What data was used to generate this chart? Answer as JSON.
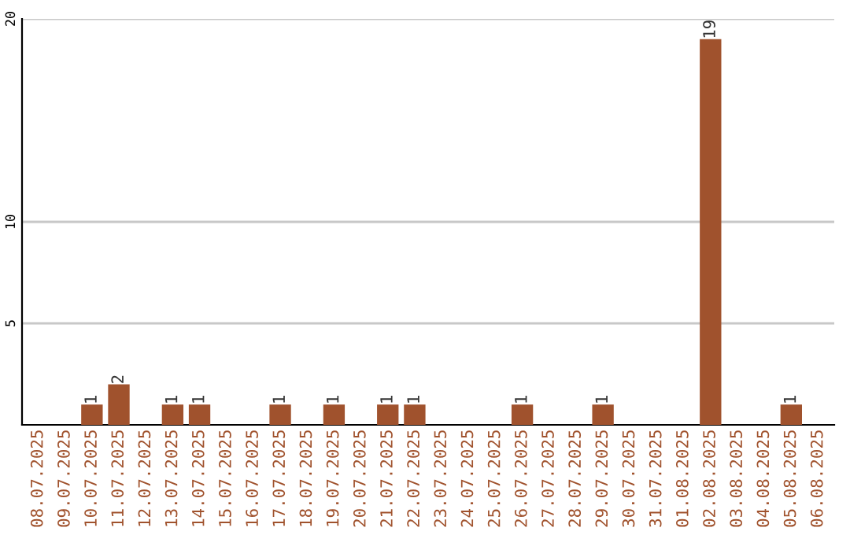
{
  "chart_data": {
    "type": "bar",
    "categories": [
      "08.07.2025",
      "09.07.2025",
      "10.07.2025",
      "11.07.2025",
      "12.07.2025",
      "13.07.2025",
      "14.07.2025",
      "15.07.2025",
      "16.07.2025",
      "17.07.2025",
      "18.07.2025",
      "19.07.2025",
      "20.07.2025",
      "21.07.2025",
      "22.07.2025",
      "23.07.2025",
      "24.07.2025",
      "25.07.2025",
      "26.07.2025",
      "27.07.2025",
      "28.07.2025",
      "29.07.2025",
      "30.07.2025",
      "31.07.2025",
      "01.08.2025",
      "02.08.2025",
      "03.08.2025",
      "04.08.2025",
      "05.08.2025",
      "06.08.2025"
    ],
    "values": [
      0,
      0,
      1,
      2,
      0,
      1,
      1,
      0,
      0,
      1,
      0,
      1,
      0,
      1,
      1,
      0,
      0,
      0,
      1,
      0,
      0,
      1,
      0,
      0,
      0,
      19,
      0,
      0,
      1,
      0
    ],
    "value_labels": [
      null,
      null,
      "1",
      "2",
      null,
      "1",
      "1",
      null,
      null,
      "1",
      null,
      "1",
      null,
      "1",
      "1",
      null,
      null,
      null,
      "1",
      null,
      null,
      "1",
      null,
      null,
      null,
      "19",
      null,
      null,
      "1",
      null
    ],
    "color": "#a0522d",
    "ylim": [
      0,
      20
    ],
    "yticks": [
      5,
      10,
      20
    ],
    "grid": "y"
  }
}
